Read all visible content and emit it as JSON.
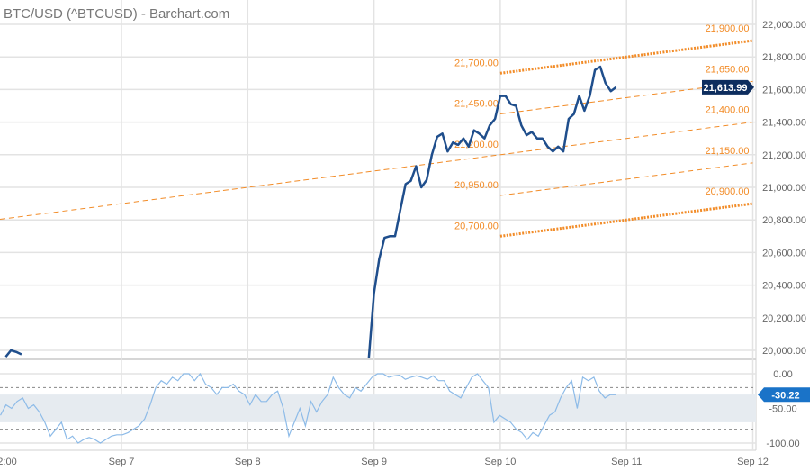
{
  "header": {
    "title": "BTC/USD (^BTCUSD) - Barchart.com"
  },
  "colors": {
    "price_line": "#1f4e8c",
    "indicator_line": "#8dbbe8",
    "channel": "#f28c28",
    "price_badge": "#0d2d5e",
    "indicator_badge": "#1a73c8",
    "band": "#e6ebf0",
    "grid": "#e3e3e3"
  },
  "chart_data": [
    {
      "type": "line",
      "pane": "price",
      "ylim": [
        19950,
        22100
      ],
      "y_ticks": [
        "20,000.00",
        "20,200.00",
        "20,400.00",
        "20,600.00",
        "20,800.00",
        "21,000.00",
        "21,200.00",
        "21,400.00",
        "21,600.00",
        "21,800.00",
        "22,000.00"
      ],
      "y_tick_values": [
        20000,
        20200,
        20400,
        20600,
        20800,
        21000,
        21200,
        21400,
        21600,
        21800,
        22000
      ],
      "x_ticks": [
        "2:00",
        "Sep 7",
        "Sep 8",
        "Sep 9",
        "Sep 10",
        "Sep 11",
        "Sep 12"
      ],
      "last_value_label": "21,613.99",
      "series": [
        {
          "start": "Sep 8 23:00",
          "end": "Sep 10 22:00",
          "values": [
            19950,
            20350,
            20560,
            20690,
            20700,
            20700,
            20860,
            21020,
            21040,
            21130,
            21000,
            21045,
            21200,
            21310,
            21330,
            21220,
            21275,
            21260,
            21300,
            21250,
            21350,
            21330,
            21300,
            21380,
            21420,
            21560,
            21560,
            21510,
            21500,
            21380,
            21320,
            21340,
            21300,
            21300,
            21250,
            21220,
            21250,
            21220,
            21420,
            21450,
            21560,
            21470,
            21560,
            21720,
            21740,
            21640,
            21590,
            21614
          ]
        },
        {
          "start": "Sep 6 02:00",
          "end": "Sep 6 05:00",
          "values": [
            19960,
            20000,
            19990,
            19975
          ]
        }
      ],
      "channel_lines": [
        {
          "style": "dashed",
          "start": "Sep 6 00:00",
          "end": "Sep 12 00:00",
          "from": 20800,
          "to": 21400,
          "label_start": "",
          "label_end": "21,400.00"
        },
        {
          "style": "dotted",
          "start": "Sep 10 00:00",
          "end": "Sep 12 00:00",
          "from": 21700,
          "to": 21900,
          "label_start": "21,700.00",
          "label_end": "21,900.00"
        },
        {
          "style": "dashed",
          "start": "Sep 10 00:00",
          "end": "Sep 12 00:00",
          "from": 21450,
          "to": 21650,
          "label_start": "21,450.00",
          "label_end": "21,650.00"
        },
        {
          "style": "none",
          "start": "Sep 10 00:00",
          "end": "Sep 12 00:00",
          "from": 21200,
          "to": 21400,
          "label_start": "21,200.00",
          "label_end": ""
        },
        {
          "style": "dashed",
          "start": "Sep 10 00:00",
          "end": "Sep 12 00:00",
          "from": 20950,
          "to": 21150,
          "label_start": "20,950.00",
          "label_end": "21,150.00"
        },
        {
          "style": "dotted",
          "start": "Sep 10 00:00",
          "end": "Sep 12 00:00",
          "from": 20700,
          "to": 20900,
          "label_start": "20,700.00",
          "label_end": "20,900.00"
        }
      ]
    },
    {
      "type": "line",
      "pane": "indicator",
      "ylim": [
        -100,
        0
      ],
      "y_ticks": [
        "0.00",
        "-50.00",
        "-100.00"
      ],
      "y_tick_values": [
        0,
        -50,
        -100
      ],
      "reference_lines": [
        -20,
        -80
      ],
      "band": [
        -30,
        -70
      ],
      "last_value_label": "-30.22",
      "series": [
        {
          "start": "Sep 6 01:00",
          "end": "Sep 10 22:00",
          "values": [
            -60,
            -45,
            -50,
            -40,
            -35,
            -50,
            -45,
            -55,
            -70,
            -90,
            -80,
            -70,
            -95,
            -90,
            -100,
            -95,
            -92,
            -95,
            -100,
            -95,
            -90,
            -88,
            -88,
            -85,
            -80,
            -75,
            -65,
            -45,
            -20,
            -10,
            -15,
            -5,
            -10,
            0,
            0,
            -10,
            0,
            -15,
            -20,
            -30,
            -20,
            -20,
            -15,
            -25,
            -30,
            -45,
            -30,
            -40,
            -40,
            -30,
            -25,
            -50,
            -90,
            -70,
            -50,
            -75,
            -40,
            -55,
            -40,
            -30,
            -5,
            -20,
            -30,
            -35,
            -20,
            -25,
            -15,
            -5,
            0,
            0,
            -5,
            -3,
            -2,
            -8,
            -5,
            -3,
            -5,
            -8,
            -3,
            -10,
            -10,
            -25,
            -30,
            -35,
            -20,
            -5,
            0,
            -10,
            -20,
            -70,
            -60,
            -65,
            -70,
            -80,
            -85,
            -95,
            -85,
            -90,
            -75,
            -60,
            -55,
            -35,
            -20,
            -10,
            -50,
            -5,
            -10,
            -5,
            -25,
            -35,
            -30,
            -30.22
          ]
        }
      ]
    }
  ]
}
